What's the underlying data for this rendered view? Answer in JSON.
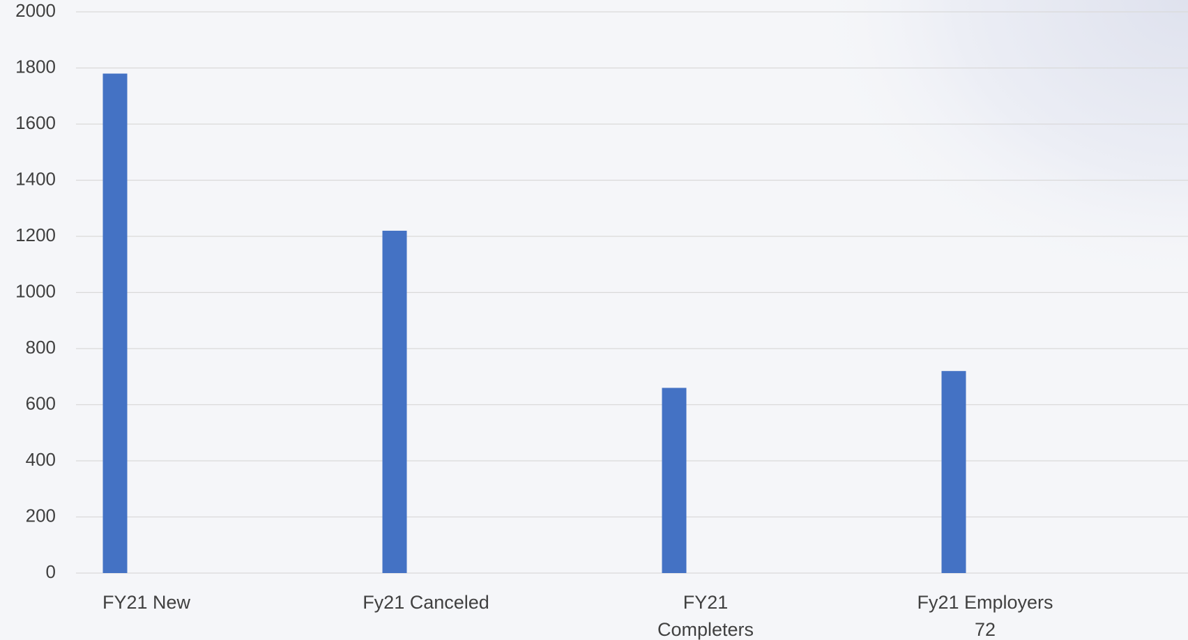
{
  "chart_data": {
    "type": "bar",
    "categories": [
      "FY21 New",
      "Fy21 Canceled",
      "FY21 Completers",
      "Fy21 Employers 72"
    ],
    "values": [
      1780,
      1220,
      660,
      720
    ],
    "color": "#4472c4",
    "ylim": [
      0,
      2000
    ],
    "yticks": [
      0,
      200,
      400,
      600,
      800,
      1000,
      1200,
      1400,
      1600,
      1800,
      2000
    ],
    "grid": true
  }
}
